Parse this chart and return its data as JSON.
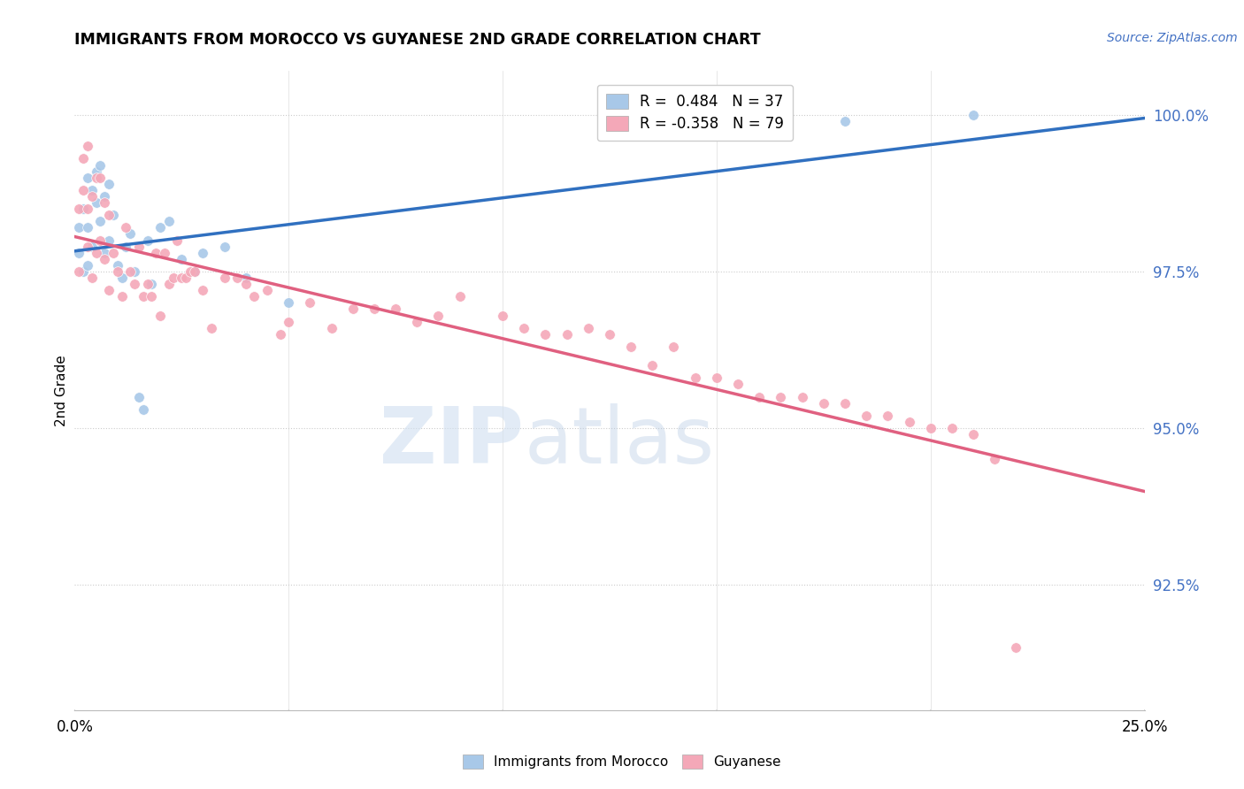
{
  "title": "IMMIGRANTS FROM MOROCCO VS GUYANESE 2ND GRADE CORRELATION CHART",
  "source": "Source: ZipAtlas.com",
  "ylabel": "2nd Grade",
  "xlim": [
    0.0,
    0.25
  ],
  "ylim": [
    90.5,
    100.7
  ],
  "legend_label1": "Immigrants from Morocco",
  "legend_label2": "Guyanese",
  "r1": 0.484,
  "n1": 37,
  "r2": -0.358,
  "n2": 79,
  "color_blue": "#a8c8e8",
  "color_pink": "#f4a8b8",
  "line_color_blue": "#3070c0",
  "line_color_pink": "#e06080",
  "watermark_zip": "ZIP",
  "watermark_atlas": "atlas",
  "blue_x": [
    0.001,
    0.001,
    0.002,
    0.002,
    0.003,
    0.003,
    0.003,
    0.004,
    0.004,
    0.005,
    0.005,
    0.006,
    0.006,
    0.007,
    0.007,
    0.008,
    0.008,
    0.009,
    0.01,
    0.011,
    0.012,
    0.013,
    0.014,
    0.015,
    0.016,
    0.017,
    0.018,
    0.02,
    0.022,
    0.025,
    0.028,
    0.03,
    0.035,
    0.04,
    0.05,
    0.18,
    0.21
  ],
  "blue_y": [
    98.2,
    97.8,
    98.5,
    97.5,
    99.0,
    98.2,
    97.6,
    98.8,
    97.9,
    99.1,
    98.6,
    99.2,
    98.3,
    98.7,
    97.8,
    98.9,
    98.0,
    98.4,
    97.6,
    97.4,
    97.9,
    98.1,
    97.5,
    95.5,
    95.3,
    98.0,
    97.3,
    98.2,
    98.3,
    97.7,
    97.5,
    97.8,
    97.9,
    97.4,
    97.0,
    99.9,
    100.0
  ],
  "pink_x": [
    0.001,
    0.001,
    0.002,
    0.002,
    0.003,
    0.003,
    0.003,
    0.004,
    0.004,
    0.005,
    0.005,
    0.006,
    0.006,
    0.007,
    0.007,
    0.008,
    0.008,
    0.009,
    0.01,
    0.011,
    0.012,
    0.013,
    0.014,
    0.015,
    0.016,
    0.017,
    0.018,
    0.019,
    0.02,
    0.021,
    0.022,
    0.023,
    0.024,
    0.025,
    0.026,
    0.027,
    0.028,
    0.03,
    0.032,
    0.035,
    0.038,
    0.04,
    0.042,
    0.045,
    0.048,
    0.05,
    0.055,
    0.06,
    0.065,
    0.07,
    0.075,
    0.08,
    0.085,
    0.09,
    0.1,
    0.105,
    0.11,
    0.115,
    0.12,
    0.125,
    0.13,
    0.135,
    0.14,
    0.145,
    0.15,
    0.155,
    0.16,
    0.165,
    0.17,
    0.175,
    0.18,
    0.185,
    0.19,
    0.195,
    0.2,
    0.205,
    0.21,
    0.215,
    0.22
  ],
  "pink_y": [
    98.5,
    97.5,
    99.3,
    98.8,
    99.5,
    98.5,
    97.9,
    98.7,
    97.4,
    99.0,
    97.8,
    99.0,
    98.0,
    98.6,
    97.7,
    98.4,
    97.2,
    97.8,
    97.5,
    97.1,
    98.2,
    97.5,
    97.3,
    97.9,
    97.1,
    97.3,
    97.1,
    97.8,
    96.8,
    97.8,
    97.3,
    97.4,
    98.0,
    97.4,
    97.4,
    97.5,
    97.5,
    97.2,
    96.6,
    97.4,
    97.4,
    97.3,
    97.1,
    97.2,
    96.5,
    96.7,
    97.0,
    96.6,
    96.9,
    96.9,
    96.9,
    96.7,
    96.8,
    97.1,
    96.8,
    96.6,
    96.5,
    96.5,
    96.6,
    96.5,
    96.3,
    96.0,
    96.3,
    95.8,
    95.8,
    95.7,
    95.5,
    95.5,
    95.5,
    95.4,
    95.4,
    95.2,
    95.2,
    95.1,
    95.0,
    95.0,
    94.9,
    94.5,
    91.5
  ]
}
